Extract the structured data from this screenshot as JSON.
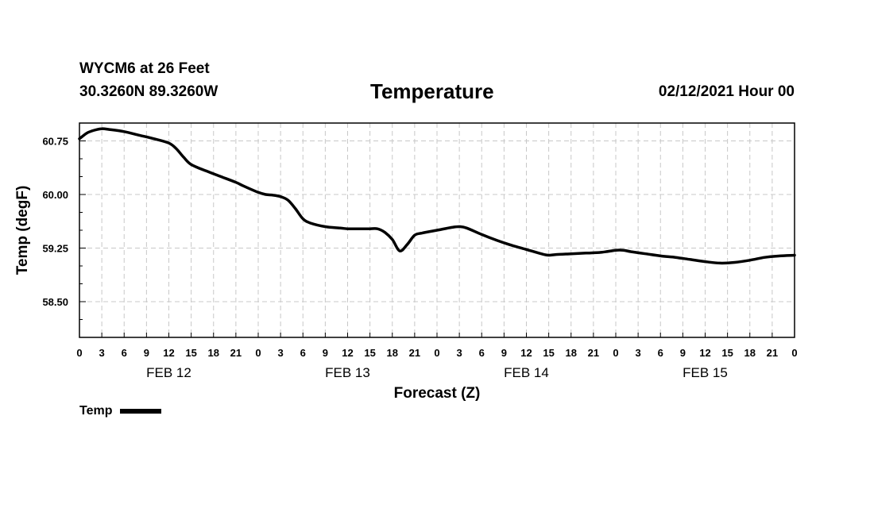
{
  "header": {
    "station": "WYCM6 at 26 Feet",
    "coords": "30.3260N 89.3260W",
    "title": "Temperature",
    "datetime": "02/12/2021 Hour 00"
  },
  "chart_data": {
    "type": "line",
    "title": "Temperature",
    "xlabel": "Forecast (Z)",
    "ylabel": "Temp (degF)",
    "x_range_hours": [
      0,
      96
    ],
    "ylim": [
      58.0,
      61.0
    ],
    "y_ticks": [
      58.5,
      59.25,
      60.0,
      60.75
    ],
    "y_tick_labels": [
      "58.50",
      "59.25",
      "60.00",
      "60.75"
    ],
    "x_tick_step_hours": 3,
    "x_tick_labels": [
      "0",
      "3",
      "6",
      "9",
      "12",
      "15",
      "18",
      "21",
      "0",
      "3",
      "6",
      "9",
      "12",
      "15",
      "18",
      "21",
      "0",
      "3",
      "6",
      "9",
      "12",
      "15",
      "18",
      "21",
      "0",
      "3",
      "6",
      "9",
      "12",
      "15",
      "18",
      "21",
      "0"
    ],
    "day_labels": [
      {
        "label": "FEB 12",
        "hour": 12
      },
      {
        "label": "FEB 13",
        "hour": 36
      },
      {
        "label": "FEB 14",
        "hour": 60
      },
      {
        "label": "FEB 15",
        "hour": 84
      }
    ],
    "grid": true,
    "legend_position": "bottom-left",
    "series": [
      {
        "name": "Temp",
        "color": "#000000",
        "x": [
          0,
          1,
          2,
          3,
          4,
          6,
          8,
          10,
          12,
          13,
          14,
          15,
          17,
          19,
          21,
          22,
          24,
          25,
          26,
          27,
          28,
          29,
          30,
          31,
          33,
          35,
          36,
          37,
          38,
          39,
          40,
          41,
          42,
          43,
          44,
          45,
          46,
          48,
          50,
          51,
          52,
          54,
          56,
          58,
          60,
          62,
          63,
          64,
          66,
          68,
          70,
          72,
          73,
          74,
          76,
          78,
          80,
          82,
          84,
          86,
          88,
          90,
          92,
          94,
          96
        ],
        "values": [
          60.78,
          60.86,
          60.9,
          60.92,
          60.91,
          60.88,
          60.83,
          60.78,
          60.72,
          60.64,
          60.52,
          60.42,
          60.33,
          60.25,
          60.17,
          60.12,
          60.03,
          60.0,
          59.99,
          59.97,
          59.92,
          59.8,
          59.66,
          59.6,
          59.55,
          59.53,
          59.52,
          59.52,
          59.52,
          59.52,
          59.52,
          59.47,
          59.37,
          59.21,
          59.3,
          59.43,
          59.46,
          59.5,
          59.54,
          59.55,
          59.53,
          59.44,
          59.36,
          59.29,
          59.23,
          59.17,
          59.15,
          59.16,
          59.17,
          59.18,
          59.19,
          59.22,
          59.22,
          59.2,
          59.17,
          59.14,
          59.12,
          59.09,
          59.06,
          59.04,
          59.05,
          59.08,
          59.12,
          59.14,
          59.15
        ]
      }
    ]
  },
  "legend": {
    "label": "Temp"
  }
}
